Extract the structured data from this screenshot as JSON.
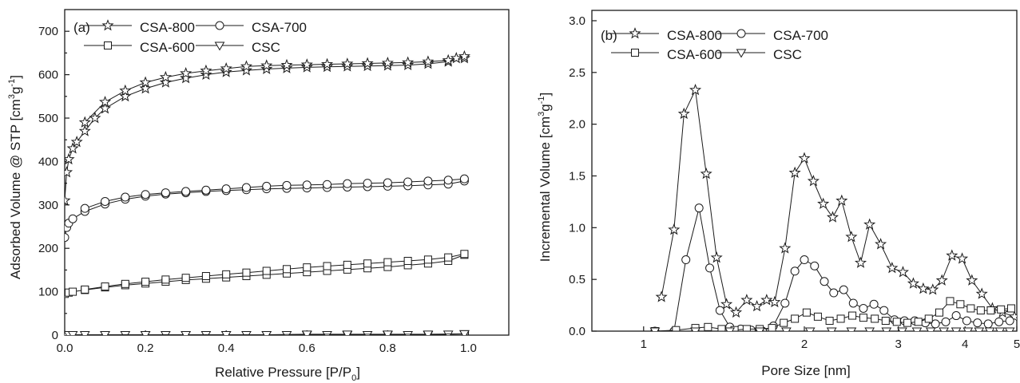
{
  "chart_data": [
    {
      "type": "line",
      "panel_label": "(a)",
      "xlabel": "Relative Pressure [P/P",
      "xlabel_sub": "0",
      "xlabel_end": "]",
      "ylabel": "Adsorbed Volume @ STP [cm",
      "ylabel_sup1": "3",
      "ylabel_mid": "g",
      "ylabel_sup2": "-1",
      "ylabel_end": "]",
      "xlim": [
        0,
        1.1
      ],
      "ylim": [
        0,
        750
      ],
      "x_ticks": [
        0.0,
        0.2,
        0.4,
        0.6,
        0.8,
        1.0
      ],
      "x_tick_labels": [
        "0.0",
        "0.2",
        "0.4",
        "0.6",
        "0.8",
        "1.0"
      ],
      "y_ticks": [
        0,
        100,
        200,
        300,
        400,
        500,
        600,
        700
      ],
      "y_tick_labels": [
        "0",
        "100",
        "200",
        "300",
        "400",
        "500",
        "600",
        "700"
      ],
      "grid": false,
      "legend_position": "top-left",
      "series": [
        {
          "name": "CSA-800",
          "marker": "star",
          "adsorption": {
            "x": [
              0.0,
              0.005,
              0.01,
              0.02,
              0.03,
              0.05,
              0.075,
              0.1,
              0.15,
              0.2,
              0.25,
              0.3,
              0.35,
              0.4,
              0.45,
              0.5,
              0.55,
              0.6,
              0.65,
              0.7,
              0.75,
              0.8,
              0.85,
              0.9,
              0.95,
              0.99
            ],
            "y": [
              310,
              375,
              405,
              430,
              445,
              470,
              500,
              522,
              550,
              568,
              582,
              592,
              600,
              606,
              610,
              613,
              615,
              617,
              618,
              619,
              620,
              621,
              622,
              625,
              630,
              638
            ]
          },
          "desorption": {
            "x": [
              0.99,
              0.97,
              0.95,
              0.9,
              0.85,
              0.8,
              0.75,
              0.7,
              0.65,
              0.6,
              0.55,
              0.5,
              0.45,
              0.4,
              0.35,
              0.3,
              0.25,
              0.2,
              0.15,
              0.1,
              0.05
            ],
            "y": [
              642,
              638,
              633,
              630,
              628,
              627,
              626,
              625,
              624,
              623,
              622,
              621,
              619,
              614,
              609,
              603,
              594,
              582,
              563,
              537,
              490
            ]
          }
        },
        {
          "name": "CSA-700",
          "marker": "circle",
          "adsorption": {
            "x": [
              0.0,
              0.005,
              0.01,
              0.02,
              0.05,
              0.1,
              0.15,
              0.2,
              0.25,
              0.3,
              0.35,
              0.4,
              0.45,
              0.5,
              0.55,
              0.6,
              0.65,
              0.7,
              0.75,
              0.8,
              0.85,
              0.9,
              0.95,
              0.99
            ],
            "y": [
              225,
              248,
              258,
              268,
              285,
              302,
              313,
              320,
              325,
              328,
              331,
              333,
              335,
              337,
              338,
              339,
              340,
              341,
              342,
              343,
              344,
              346,
              348,
              355
            ]
          },
          "desorption": {
            "x": [
              0.99,
              0.95,
              0.9,
              0.85,
              0.8,
              0.75,
              0.7,
              0.65,
              0.6,
              0.55,
              0.5,
              0.45,
              0.4,
              0.35,
              0.3,
              0.25,
              0.2,
              0.15,
              0.1,
              0.05
            ],
            "y": [
              360,
              357,
              355,
              353,
              351,
              350,
              349,
              347,
              346,
              345,
              343,
              340,
              337,
              334,
              331,
              328,
              324,
              318,
              308,
              292
            ]
          }
        },
        {
          "name": "CSA-600",
          "marker": "square",
          "adsorption": {
            "x": [
              0.0,
              0.01,
              0.02,
              0.05,
              0.1,
              0.15,
              0.2,
              0.25,
              0.3,
              0.35,
              0.4,
              0.45,
              0.5,
              0.55,
              0.6,
              0.65,
              0.7,
              0.75,
              0.8,
              0.85,
              0.9,
              0.95,
              0.99
            ],
            "y": [
              95,
              98,
              100,
              104,
              110,
              115,
              119,
              123,
              127,
              130,
              133,
              136,
              139,
              142,
              145,
              148,
              151,
              154,
              157,
              161,
              165,
              171,
              185
            ]
          },
          "desorption": {
            "x": [
              0.99,
              0.95,
              0.9,
              0.85,
              0.8,
              0.75,
              0.7,
              0.65,
              0.6,
              0.55,
              0.5,
              0.45,
              0.4,
              0.35,
              0.3,
              0.25,
              0.2,
              0.15,
              0.1,
              0.05
            ],
            "y": [
              187,
              179,
              174,
              171,
              168,
              165,
              162,
              159,
              156,
              152,
              148,
              144,
              140,
              136,
              132,
              128,
              123,
              118,
              112,
              105
            ]
          }
        },
        {
          "name": "CSC",
          "marker": "triangle-down",
          "adsorption": {
            "x": [
              0.0,
              0.01,
              0.02,
              0.05,
              0.1,
              0.15,
              0.2,
              0.25,
              0.3,
              0.35,
              0.4,
              0.45,
              0.5,
              0.55,
              0.6,
              0.65,
              0.7,
              0.75,
              0.8,
              0.85,
              0.9,
              0.95,
              0.99
            ],
            "y": [
              1,
              1,
              1,
              1,
              1,
              1,
              1,
              1,
              1,
              1,
              1,
              1,
              1,
              1,
              1,
              1,
              1,
              1,
              1,
              1,
              1,
              2,
              3
            ]
          },
          "desorption": {
            "x": [
              0.99,
              0.9,
              0.8,
              0.7,
              0.6,
              0.5,
              0.4,
              0.3,
              0.2,
              0.1
            ],
            "y": [
              3,
              2,
              2,
              2,
              2,
              1,
              1,
              1,
              1,
              1
            ]
          }
        }
      ]
    },
    {
      "type": "line",
      "panel_label": "(b)",
      "xlabel": "Pore Size [nm]",
      "ylabel": "Incremental Volume [cm",
      "ylabel_sup1": "3",
      "ylabel_mid": "g",
      "ylabel_sup2": "-1",
      "ylabel_end": "]",
      "x_scale": "log",
      "xlim": [
        0.8,
        5
      ],
      "ylim": [
        0,
        3.1
      ],
      "x_ticks": [
        1,
        2,
        3,
        4,
        5
      ],
      "x_tick_labels": [
        "1",
        "2",
        "3",
        "4",
        "5"
      ],
      "y_ticks": [
        0.0,
        0.5,
        1.0,
        1.5,
        2.0,
        2.5,
        3.0
      ],
      "y_tick_labels": [
        "0.0",
        "0.5",
        "1.0",
        "1.5",
        "2.0",
        "2.5",
        "3.0"
      ],
      "grid": false,
      "legend_position": "top-left",
      "series": [
        {
          "name": "CSA-800",
          "marker": "star",
          "x": [
            1.08,
            1.14,
            1.19,
            1.25,
            1.31,
            1.37,
            1.43,
            1.49,
            1.56,
            1.63,
            1.7,
            1.76,
            1.84,
            1.92,
            2.0,
            2.08,
            2.17,
            2.26,
            2.35,
            2.45,
            2.55,
            2.65,
            2.78,
            2.92,
            3.06,
            3.2,
            3.34,
            3.48,
            3.62,
            3.78,
            3.95,
            4.12,
            4.3,
            4.5,
            4.7,
            4.95
          ],
          "y": [
            0.33,
            0.98,
            2.1,
            2.33,
            1.52,
            0.71,
            0.26,
            0.18,
            0.3,
            0.24,
            0.3,
            0.28,
            0.8,
            1.53,
            1.67,
            1.45,
            1.23,
            1.1,
            1.26,
            0.91,
            0.66,
            1.03,
            0.84,
            0.61,
            0.57,
            0.46,
            0.41,
            0.4,
            0.49,
            0.73,
            0.7,
            0.49,
            0.36,
            0.22,
            0.18,
            0.14
          ]
        },
        {
          "name": "CSA-700",
          "marker": "circle",
          "x": [
            1.05,
            1.14,
            1.2,
            1.27,
            1.33,
            1.39,
            1.45,
            1.52,
            1.59,
            1.67,
            1.75,
            1.84,
            1.92,
            2.0,
            2.09,
            2.18,
            2.27,
            2.37,
            2.47,
            2.58,
            2.7,
            2.82,
            2.95,
            3.08,
            3.22,
            3.37,
            3.52,
            3.68,
            3.85,
            4.03,
            4.22,
            4.42,
            4.63,
            4.85
          ],
          "y": [
            0.0,
            0.0,
            0.69,
            1.19,
            0.61,
            0.2,
            0.04,
            0.02,
            0.01,
            0.0,
            0.05,
            0.27,
            0.58,
            0.69,
            0.63,
            0.48,
            0.37,
            0.4,
            0.27,
            0.22,
            0.26,
            0.2,
            0.11,
            0.1,
            0.1,
            0.08,
            0.07,
            0.09,
            0.15,
            0.1,
            0.08,
            0.07,
            0.09,
            0.1
          ]
        },
        {
          "name": "CSA-600",
          "marker": "square",
          "x": [
            1.05,
            1.15,
            1.25,
            1.32,
            1.4,
            1.48,
            1.56,
            1.65,
            1.74,
            1.83,
            1.92,
            2.02,
            2.12,
            2.23,
            2.34,
            2.46,
            2.58,
            2.71,
            2.84,
            2.98,
            3.12,
            3.27,
            3.42,
            3.58,
            3.75,
            3.92,
            4.1,
            4.28,
            4.47,
            4.67,
            4.88
          ],
          "y": [
            0.0,
            0.01,
            0.03,
            0.04,
            0.02,
            0.01,
            0.02,
            0.02,
            0.03,
            0.08,
            0.12,
            0.18,
            0.14,
            0.1,
            0.12,
            0.15,
            0.13,
            0.12,
            0.1,
            0.09,
            0.08,
            0.09,
            0.12,
            0.18,
            0.29,
            0.26,
            0.22,
            0.2,
            0.2,
            0.21,
            0.22
          ]
        },
        {
          "name": "CSC",
          "marker": "triangle-down",
          "x": [
            1.05,
            1.25,
            1.45,
            1.65,
            1.85,
            2.05,
            2.25,
            2.45,
            2.65,
            2.85,
            3.05,
            3.25,
            3.45,
            3.65,
            3.85,
            4.05,
            4.25,
            4.45,
            4.65,
            4.85
          ],
          "y": [
            0.0,
            0.0,
            0.0,
            0.0,
            0.0,
            0.0,
            0.0,
            0.0,
            0.0,
            0.0,
            0.0,
            0.0,
            0.0,
            0.0,
            0.0,
            0.0,
            0.0,
            0.0,
            0.0,
            0.0
          ]
        }
      ]
    }
  ]
}
